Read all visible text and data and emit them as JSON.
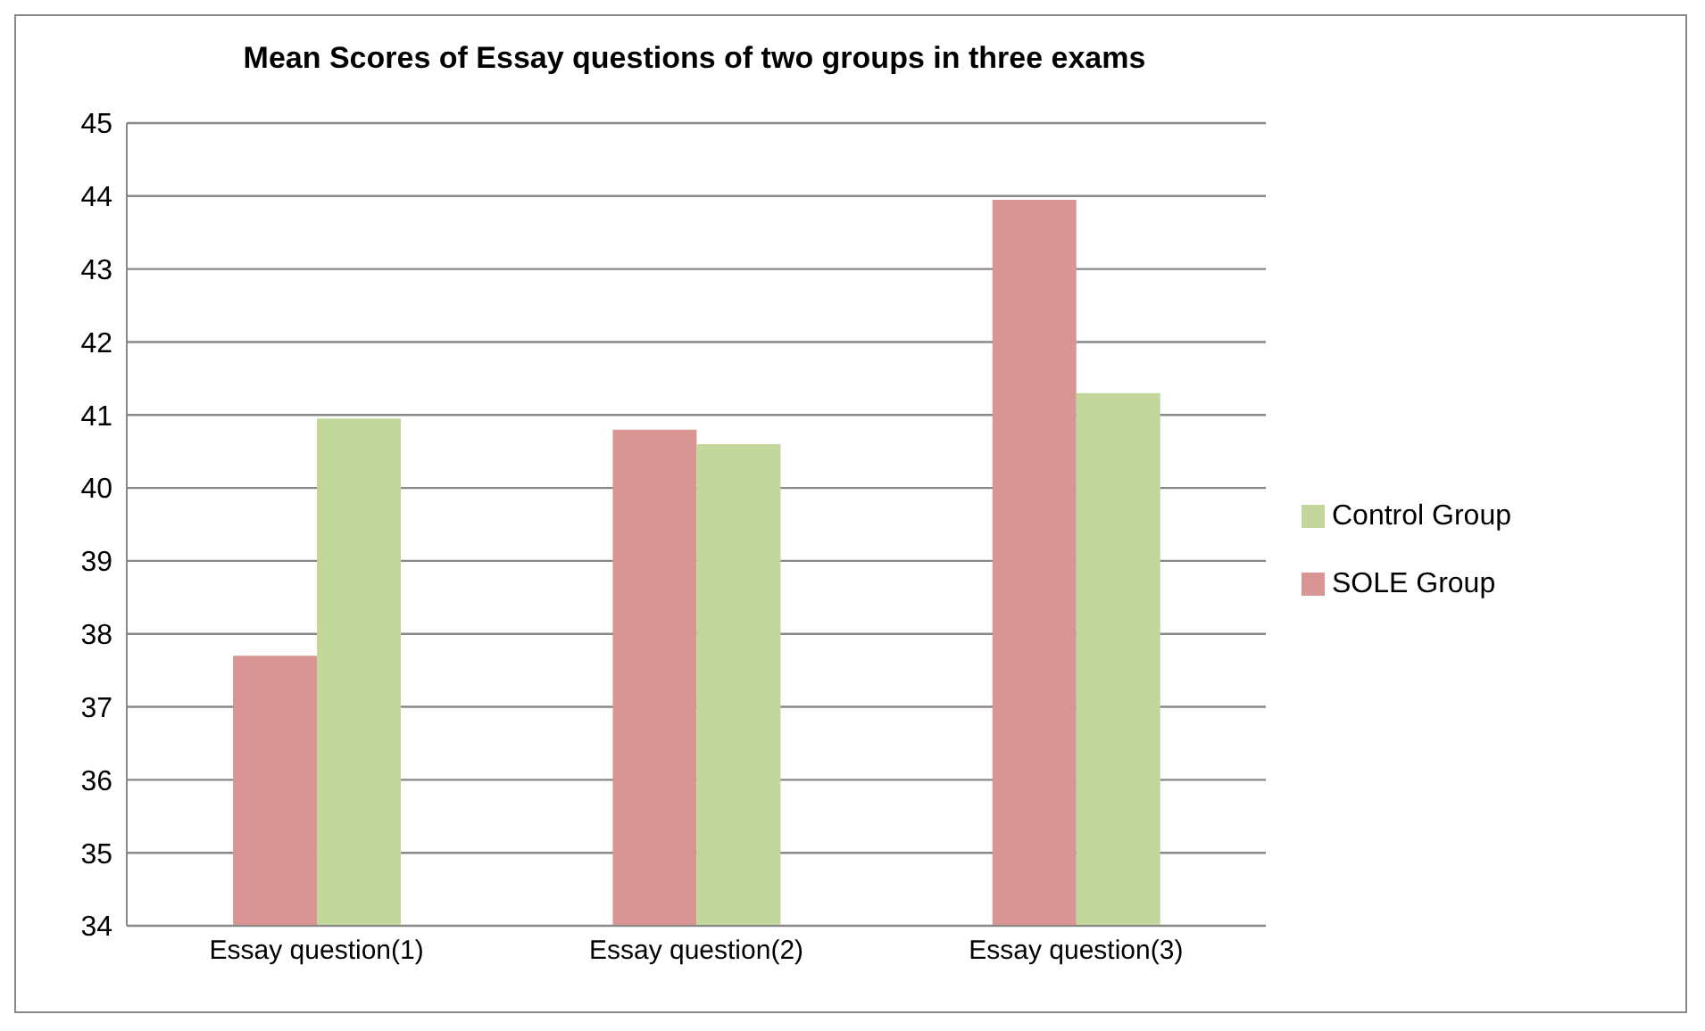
{
  "chart_data": {
    "type": "bar",
    "title": "Mean Scores of Essay questions of two groups in three exams",
    "categories": [
      "Essay question(1)",
      "Essay question(2)",
      "Essay question(3)"
    ],
    "series": [
      {
        "name": "SOLE Group",
        "color": "#d99594",
        "values": [
          37.7,
          40.8,
          43.95
        ]
      },
      {
        "name": "Control Group",
        "color": "#c3d69b",
        "values": [
          40.95,
          40.6,
          41.3
        ]
      }
    ],
    "ylim": [
      34,
      45
    ],
    "yticks": [
      34,
      35,
      36,
      37,
      38,
      39,
      40,
      41,
      42,
      43,
      44,
      45
    ],
    "grid": "y",
    "legend": "right"
  }
}
